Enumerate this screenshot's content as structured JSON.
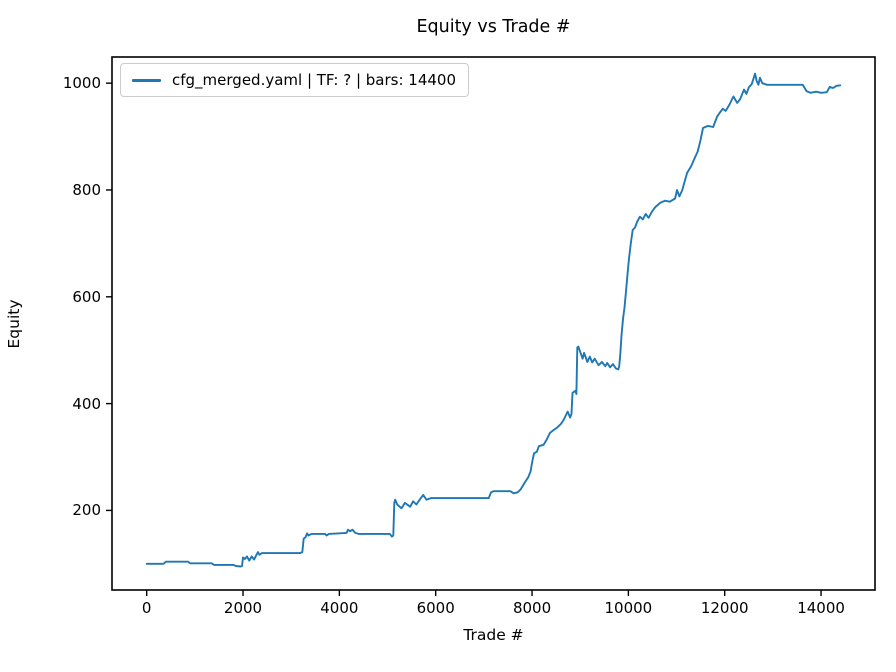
{
  "figure": {
    "background": "#ffffff"
  },
  "chart_data": {
    "type": "line",
    "title": "Equity vs Trade #",
    "xlabel": "Trade #",
    "ylabel": "Equity",
    "grid": false,
    "legend": {
      "position": "upper left",
      "entries": [
        {
          "label": "cfg_merged.yaml | TF: ? | bars: 14400",
          "color": "#1f77b4"
        }
      ]
    },
    "axes": {
      "xlim": [
        -720,
        15120
      ],
      "ylim": [
        51,
        1049
      ],
      "xticks": [
        0,
        2000,
        4000,
        6000,
        8000,
        10000,
        12000,
        14000
      ],
      "yticks": [
        200,
        400,
        600,
        800,
        1000
      ],
      "spine_color": "#000000",
      "tick_color": "#000000"
    },
    "series": [
      {
        "name": "cfg_merged.yaml | TF: ? | bars: 14400",
        "color": "#1f77b4",
        "points": [
          [
            0,
            100
          ],
          [
            350,
            100
          ],
          [
            400,
            104
          ],
          [
            860,
            104
          ],
          [
            900,
            101
          ],
          [
            1350,
            101
          ],
          [
            1400,
            98
          ],
          [
            1800,
            98
          ],
          [
            1850,
            96
          ],
          [
            1950,
            95
          ],
          [
            1980,
            96
          ],
          [
            2000,
            112
          ],
          [
            2040,
            109
          ],
          [
            2080,
            114
          ],
          [
            2130,
            106
          ],
          [
            2180,
            114
          ],
          [
            2230,
            108
          ],
          [
            2280,
            117
          ],
          [
            2310,
            122
          ],
          [
            2340,
            117
          ],
          [
            2390,
            120
          ],
          [
            3180,
            120
          ],
          [
            3230,
            122
          ],
          [
            3260,
            147
          ],
          [
            3300,
            150
          ],
          [
            3330,
            157
          ],
          [
            3360,
            153
          ],
          [
            3420,
            156
          ],
          [
            3700,
            156
          ],
          [
            3740,
            153
          ],
          [
            3780,
            156
          ],
          [
            4150,
            158
          ],
          [
            4180,
            164
          ],
          [
            4220,
            161
          ],
          [
            4270,
            164
          ],
          [
            4330,
            158
          ],
          [
            4400,
            156
          ],
          [
            5050,
            156
          ],
          [
            5090,
            151
          ],
          [
            5120,
            153
          ],
          [
            5140,
            214
          ],
          [
            5160,
            220
          ],
          [
            5200,
            211
          ],
          [
            5290,
            204
          ],
          [
            5360,
            214
          ],
          [
            5470,
            207
          ],
          [
            5530,
            217
          ],
          [
            5600,
            211
          ],
          [
            5700,
            224
          ],
          [
            5740,
            229
          ],
          [
            5810,
            220
          ],
          [
            5900,
            223
          ],
          [
            7100,
            223
          ],
          [
            7150,
            234
          ],
          [
            7200,
            236
          ],
          [
            7550,
            236
          ],
          [
            7620,
            232
          ],
          [
            7700,
            234
          ],
          [
            7760,
            239
          ],
          [
            7860,
            254
          ],
          [
            7920,
            262
          ],
          [
            7970,
            273
          ],
          [
            8000,
            289
          ],
          [
            8040,
            307
          ],
          [
            8100,
            310
          ],
          [
            8140,
            320
          ],
          [
            8240,
            323
          ],
          [
            8300,
            332
          ],
          [
            8370,
            345
          ],
          [
            8440,
            350
          ],
          [
            8520,
            355
          ],
          [
            8600,
            362
          ],
          [
            8660,
            370
          ],
          [
            8700,
            378
          ],
          [
            8740,
            385
          ],
          [
            8790,
            374
          ],
          [
            8820,
            381
          ],
          [
            8840,
            420
          ],
          [
            8900,
            424
          ],
          [
            8920,
            418
          ],
          [
            8940,
            505
          ],
          [
            8960,
            507
          ],
          [
            9000,
            497
          ],
          [
            9050,
            484
          ],
          [
            9080,
            495
          ],
          [
            9150,
            478
          ],
          [
            9200,
            488
          ],
          [
            9250,
            477
          ],
          [
            9300,
            484
          ],
          [
            9380,
            472
          ],
          [
            9450,
            478
          ],
          [
            9520,
            470
          ],
          [
            9560,
            476
          ],
          [
            9620,
            468
          ],
          [
            9680,
            474
          ],
          [
            9740,
            466
          ],
          [
            9790,
            464
          ],
          [
            9810,
            470
          ],
          [
            9830,
            490
          ],
          [
            9860,
            530
          ],
          [
            9890,
            560
          ],
          [
            9920,
            580
          ],
          [
            9950,
            610
          ],
          [
            9980,
            640
          ],
          [
            10010,
            670
          ],
          [
            10050,
            700
          ],
          [
            10090,
            725
          ],
          [
            10140,
            730
          ],
          [
            10180,
            740
          ],
          [
            10240,
            750
          ],
          [
            10300,
            745
          ],
          [
            10360,
            755
          ],
          [
            10420,
            748
          ],
          [
            10480,
            758
          ],
          [
            10510,
            762
          ],
          [
            10560,
            768
          ],
          [
            10660,
            776
          ],
          [
            10760,
            780
          ],
          [
            10860,
            778
          ],
          [
            10970,
            784
          ],
          [
            11010,
            800
          ],
          [
            11060,
            788
          ],
          [
            11120,
            800
          ],
          [
            11220,
            832
          ],
          [
            11300,
            844
          ],
          [
            11380,
            860
          ],
          [
            11440,
            872
          ],
          [
            11500,
            894
          ],
          [
            11550,
            916
          ],
          [
            11650,
            920
          ],
          [
            11760,
            918
          ],
          [
            11840,
            937
          ],
          [
            11900,
            945
          ],
          [
            11960,
            952
          ],
          [
            12020,
            948
          ],
          [
            12100,
            960
          ],
          [
            12180,
            975
          ],
          [
            12260,
            963
          ],
          [
            12320,
            970
          ],
          [
            12400,
            988
          ],
          [
            12450,
            980
          ],
          [
            12500,
            992
          ],
          [
            12560,
            998
          ],
          [
            12630,
            1018
          ],
          [
            12660,
            1005
          ],
          [
            12700,
            997
          ],
          [
            12730,
            1010
          ],
          [
            12780,
            1000
          ],
          [
            12880,
            997
          ],
          [
            13620,
            997
          ],
          [
            13700,
            985
          ],
          [
            13780,
            982
          ],
          [
            13900,
            984
          ],
          [
            14000,
            982
          ],
          [
            14120,
            983
          ],
          [
            14180,
            993
          ],
          [
            14250,
            991
          ],
          [
            14320,
            995
          ],
          [
            14400,
            996
          ]
        ]
      }
    ]
  }
}
